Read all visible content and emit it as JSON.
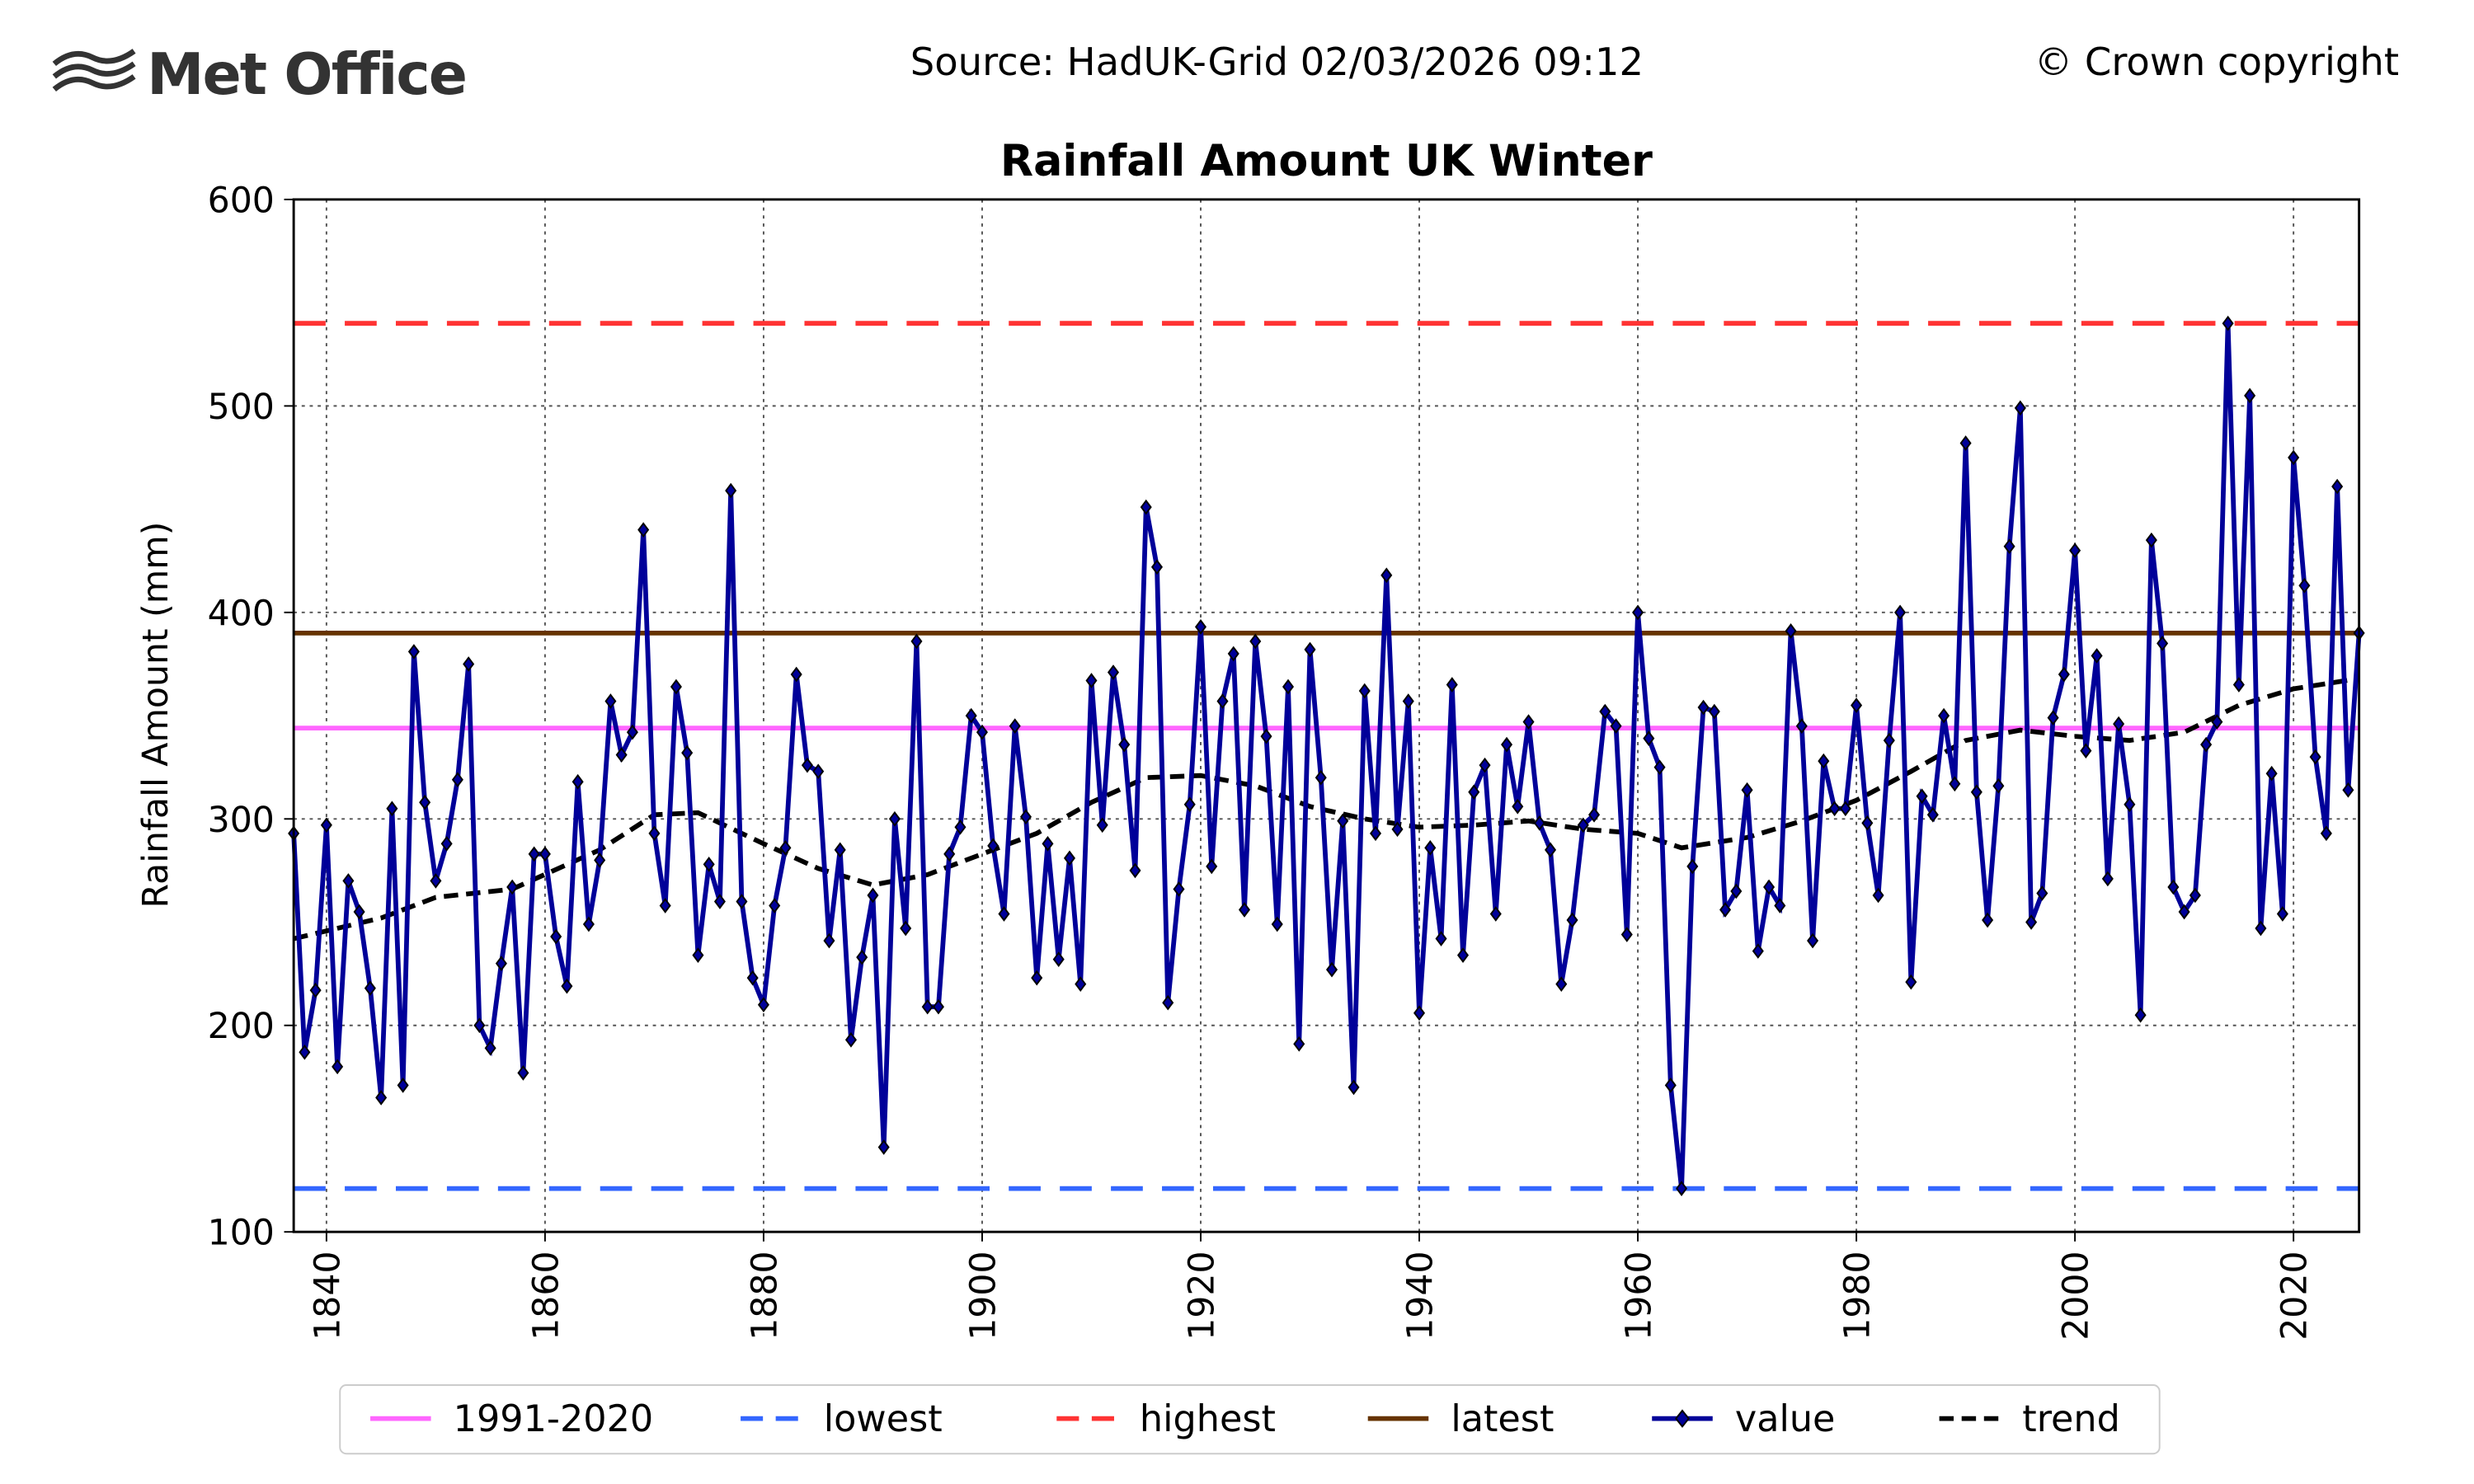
{
  "header": {
    "logo": "Met Office",
    "source": "Source: HadUK-Grid 02/03/2026 09:12",
    "copyright": "© Crown copyright"
  },
  "chart_data": {
    "type": "line",
    "title": "Rainfall Amount UK Winter",
    "xlabel": "",
    "ylabel": "Rainfall Amount (mm)",
    "xlim": [
      1837,
      2026
    ],
    "ylim": [
      100,
      600
    ],
    "x_ticks": [
      "1840",
      "1860",
      "1880",
      "1900",
      "1920",
      "1940",
      "1960",
      "1980",
      "2000",
      "2020"
    ],
    "y_ticks": [
      "100",
      "200",
      "300",
      "400",
      "500",
      "600"
    ],
    "grid": true,
    "legend_placement": "bottom",
    "reference_lines": [
      {
        "name": "1991-2020",
        "value": 344,
        "color": "#ff66ff",
        "style": "solid"
      },
      {
        "name": "lowest",
        "value": 121,
        "color": "#3366ff",
        "style": "dashed"
      },
      {
        "name": "highest",
        "value": 540,
        "color": "#ff3333",
        "style": "dashed"
      },
      {
        "name": "latest",
        "value": 390,
        "color": "#663300",
        "style": "solid"
      }
    ],
    "series": [
      {
        "name": "value",
        "color": "#000099",
        "start_year": 1837,
        "values": [
          293,
          187,
          217,
          297,
          180,
          270,
          255,
          218,
          165,
          305,
          171,
          381,
          308,
          270,
          288,
          319,
          375,
          200,
          189,
          230,
          267,
          177,
          283,
          283,
          243,
          219,
          318,
          249,
          280,
          357,
          331,
          342,
          440,
          293,
          258,
          364,
          332,
          234,
          278,
          260,
          459,
          260,
          223,
          210,
          258,
          286,
          370,
          326,
          323,
          241,
          285,
          193,
          233,
          263,
          141,
          300,
          247,
          386,
          209,
          209,
          283,
          296,
          350,
          342,
          287,
          254,
          345,
          301,
          223,
          288,
          232,
          281,
          220,
          367,
          297,
          371,
          336,
          275,
          451,
          422,
          211,
          266,
          307,
          393,
          277,
          357,
          380,
          256,
          386,
          340,
          249,
          364,
          191,
          382,
          320,
          227,
          299,
          170,
          362,
          293,
          418,
          295,
          357,
          206,
          286,
          242,
          365,
          234,
          313,
          326,
          254,
          336,
          306,
          347,
          298,
          285,
          220,
          251,
          297,
          302,
          352,
          345,
          244,
          400,
          339,
          325,
          171,
          121,
          277,
          354,
          352,
          256,
          265,
          314,
          236,
          267,
          258,
          391,
          345,
          241,
          328,
          305,
          305,
          355,
          298,
          263,
          338,
          400,
          221,
          311,
          302,
          350,
          317,
          482,
          313,
          251,
          316,
          432,
          499,
          250,
          264,
          349,
          370,
          430,
          333,
          379,
          271,
          346,
          307,
          205,
          435,
          385,
          267,
          255,
          263,
          336,
          347,
          540,
          365,
          505,
          247,
          322,
          254,
          475,
          413,
          330,
          293,
          461,
          314,
          390
        ]
      },
      {
        "name": "trend",
        "color": "#000000",
        "style": "dashed",
        "x": [
          1837,
          1845,
          1850,
          1857,
          1865,
          1870,
          1874,
          1880,
          1885,
          1890,
          1895,
          1900,
          1905,
          1910,
          1915,
          1920,
          1925,
          1930,
          1935,
          1940,
          1945,
          1950,
          1955,
          1960,
          1964,
          1970,
          1975,
          1980,
          1985,
          1990,
          1995,
          2000,
          2005,
          2010,
          2015,
          2020,
          2026
        ],
        "values": [
          242,
          252,
          262,
          266,
          285,
          302,
          303,
          288,
          276,
          268,
          273,
          283,
          293,
          308,
          320,
          321,
          316,
          306,
          300,
          296,
          297,
          299,
          295,
          293,
          286,
          291,
          299,
          309,
          323,
          338,
          343,
          340,
          338,
          342,
          355,
          363,
          368
        ]
      }
    ],
    "legend": [
      "1991-2020",
      "lowest",
      "highest",
      "latest",
      "value",
      "trend"
    ]
  }
}
